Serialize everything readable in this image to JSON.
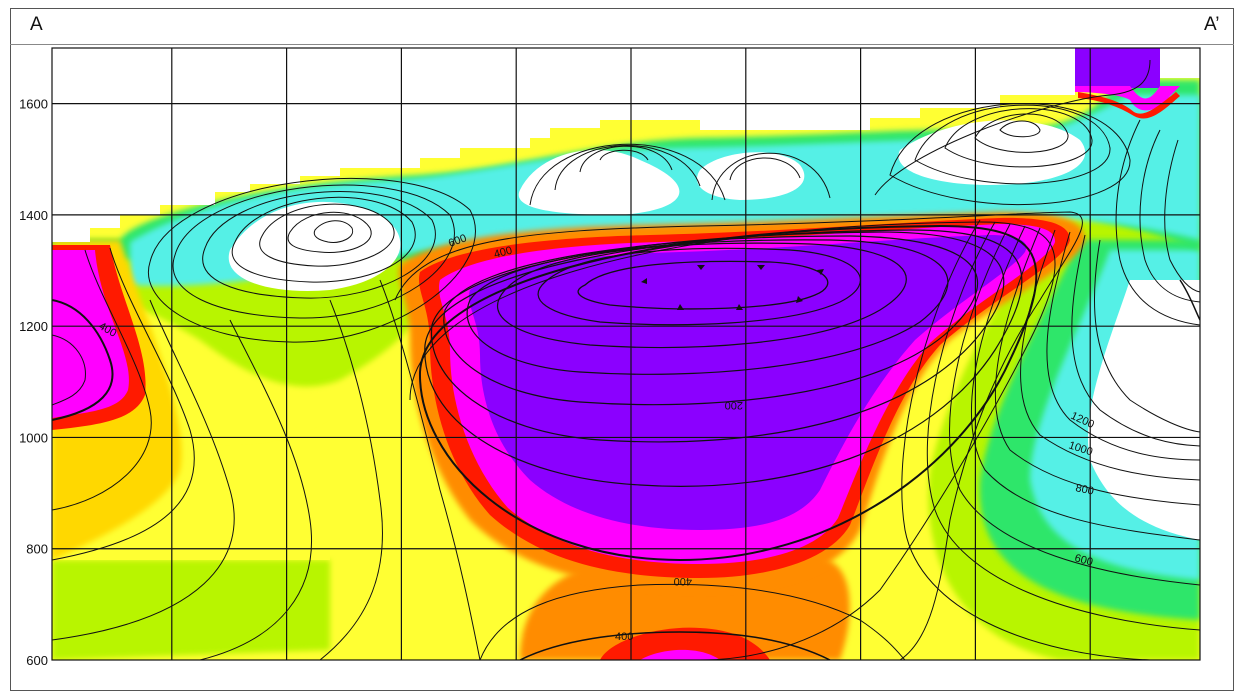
{
  "section": {
    "start_label": "A",
    "end_label": "A’"
  },
  "chart_data": {
    "type": "heatmap",
    "title": "",
    "xlabel": "",
    "ylabel": "",
    "ylim": [
      600,
      1700
    ],
    "y_ticks": [
      600,
      800,
      1000,
      1200,
      1400,
      1600
    ],
    "x_grid_columns": 10,
    "grid": true,
    "contour_labels": [
      {
        "text": "400",
        "at": [
          470,
          1050
        ]
      },
      {
        "text": "600",
        "at": [
          590,
          1355
        ]
      },
      {
        "text": "400",
        "at": [
          640,
          1360
        ]
      },
      {
        "text": "200",
        "at": [
          760,
          1050
        ]
      },
      {
        "text": "400",
        "at": [
          710,
          640
        ]
      },
      {
        "text": "400",
        "at": [
          630,
          615
        ]
      },
      {
        "text": "1200",
        "at": [
          1085,
          1015
        ]
      },
      {
        "text": "1000",
        "at": [
          1090,
          980
        ]
      },
      {
        "text": "800",
        "at": [
          1090,
          945
        ]
      },
      {
        "text": "600",
        "at": [
          1090,
          800
        ]
      }
    ],
    "colors": {
      "violet": "#8b00ff",
      "magenta": "#ff00ff",
      "red": "#ff1a00",
      "orange": "#ff8c00",
      "gold": "#ffd800",
      "yellow": "#ffff33",
      "yellow_green": "#b8f500",
      "green": "#2ee66b",
      "cyan": "#55f0e6",
      "light_cyan": "#c8fafa"
    }
  }
}
